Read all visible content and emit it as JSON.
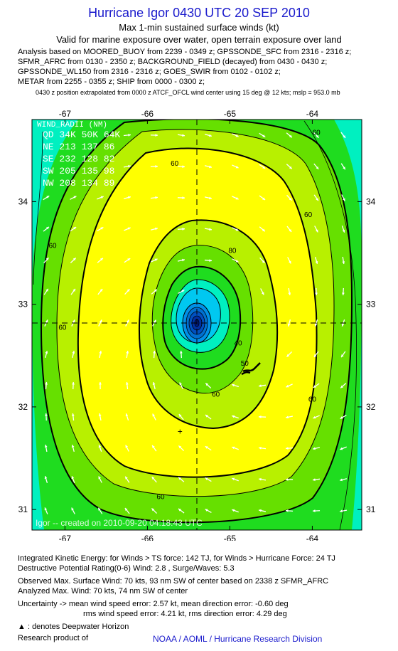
{
  "header": {
    "title": "Hurricane Igor 0430 UTC 20 SEP 2010",
    "subtitle1": "Max 1-min sustained surface winds (kt)",
    "subtitle2": "Valid for marine exposure over water, open terrain exposure over land"
  },
  "analysis_lines": [
    "Analysis based on MOORED_BUOY from 2239 - 0349 z; GPSSONDE_SFC from 2316 - 2316 z;",
    "SFMR_AFRC from 0130 - 2350 z; BACKGROUND_FIELD (decayed) from 0430 - 0430 z;",
    "GPSSONDE_WL150 from 2316 - 2316 z; GOES_SWIR from 0102 - 0102 z;",
    "METAR from 2255 - 0355 z; SHIP from 0000 - 0300 z;"
  ],
  "position_note": "0430 z position extrapolated from 0000 z ATCF_OFCL wind center using 15 deg @ 12 kts; mslp = 953.0 mb",
  "chart_data": {
    "type": "heatmap",
    "xlim": [
      -67.4,
      -63.4
    ],
    "ylim": [
      30.8,
      34.8
    ],
    "x_ticks": [
      "-67",
      "-66",
      "-65",
      "-64"
    ],
    "y_ticks": [
      "31",
      "32",
      "33",
      "34"
    ],
    "center": {
      "lon": -65.0,
      "lat": 32.75
    },
    "contour_labels": [
      {
        "text": "60",
        "lon": -65.67,
        "lat": 34.35
      },
      {
        "text": "60",
        "lon": -64.05,
        "lat": 33.85
      },
      {
        "text": "60",
        "lon": -67.15,
        "lat": 33.55
      },
      {
        "text": "60",
        "lon": -67.03,
        "lat": 32.75
      },
      {
        "text": "60",
        "lon": -64.0,
        "lat": 32.05
      },
      {
        "text": "60",
        "lon": -65.84,
        "lat": 31.1
      },
      {
        "text": "60",
        "lon": -65.17,
        "lat": 32.1
      },
      {
        "text": "60",
        "lon": -63.95,
        "lat": 34.65
      },
      {
        "text": "80",
        "lon": -64.97,
        "lat": 33.5
      },
      {
        "text": "50",
        "lon": -64.82,
        "lat": 32.4
      },
      {
        "text": "40",
        "lon": -64.9,
        "lat": 32.6
      }
    ],
    "wind_radii": {
      "title": "WIND_RADII (NM)",
      "header": "QD  34K  50K  64K",
      "rows": [
        "NE  213  137   86",
        "SE  232  128   82",
        "SW  205  135   98",
        "NW  208  134   89"
      ]
    },
    "plus_marker": {
      "lon": -65.6,
      "lat": 31.76
    },
    "watermark": "Igor -- created on 2010-09-20 04:18:43 UTC",
    "colors": {
      "yellow": "#ffff00",
      "light_green": "#b8f000",
      "green": "#66e000",
      "bright_green": "#1fdc1f",
      "cyan": "#00f0c0",
      "blue": "#0090e8"
    }
  },
  "footer": {
    "ike": "Integrated Kinetic Energy:  for Winds > TS force: 142 TJ,  for Winds > Hurricane Force: 24 TJ",
    "dpr": "Destructive Potential Rating(0-6)   Wind: 2.8 , Surge/Waves: 5.3",
    "obs_max": "Observed Max. Surface Wind: 70 kts, 93 nm SW of center based on 2338 z SFMR_AFRC",
    "ana_max": "Analyzed Max. Wind: 70 kts, 74 nm SW of center",
    "unc1": "Uncertainty -> mean wind speed error: 2.57 kt,   mean direction error:  -0.60 deg",
    "unc2": "rms wind speed error: 4.21 kt,   rms direction error: 4.29 deg",
    "deepwater": ": denotes Deepwater Horizon",
    "research": "Research product of",
    "credit": "NOAA / AOML / Hurricane Research Division"
  }
}
